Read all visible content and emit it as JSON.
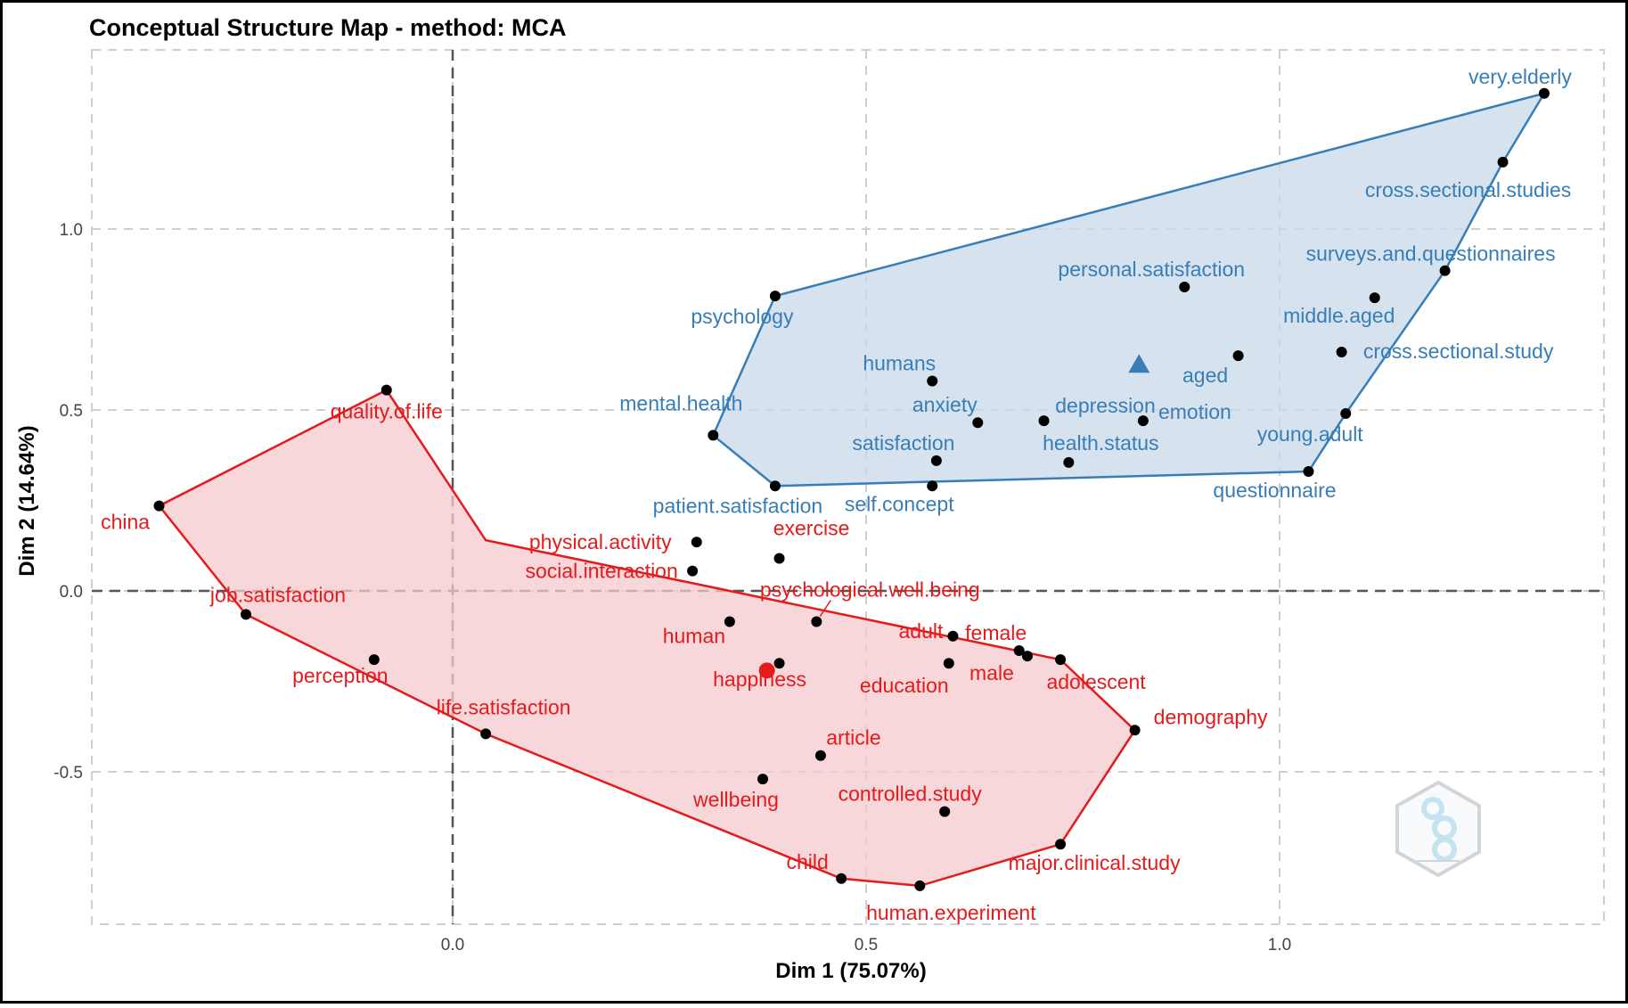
{
  "chart_data": {
    "type": "scatter",
    "title": "Conceptual Structure Map - method: MCA",
    "xlabel": "Dim 1 (75.07%)",
    "ylabel": "Dim 2 (14.64%)",
    "xlim": [
      -0.44,
      1.4
    ],
    "ylim": [
      -0.92,
      1.5
    ],
    "x_ticks": [
      0.0,
      0.5,
      1.0
    ],
    "x_tick_labels": [
      "0.0",
      "0.5",
      "1.0"
    ],
    "y_ticks": [
      -0.5,
      0.0,
      0.5,
      1.0
    ],
    "y_tick_labels": [
      "-0.5",
      "0.0",
      "0.5",
      "1.0"
    ],
    "grid": true,
    "legend": "none",
    "colors": {
      "cluster1": "#e41a1c",
      "cluster1_fill": "#f6c9cf",
      "cluster2": "#377eb8",
      "cluster2_fill": "#c9d8ea",
      "point": "#000000"
    },
    "clusters": [
      {
        "id": "cluster1",
        "centroid": [
          0.38,
          -0.22
        ],
        "centroid_marker": "circle",
        "hull": [
          [
            -0.08,
            0.555
          ],
          [
            -0.355,
            0.235
          ],
          [
            -0.25,
            -0.065
          ],
          [
            0.04,
            -0.395
          ],
          [
            0.47,
            -0.795
          ],
          [
            0.565,
            -0.815
          ],
          [
            0.735,
            -0.7
          ],
          [
            0.825,
            -0.385
          ],
          [
            0.735,
            -0.19
          ],
          [
            0.04,
            0.14
          ],
          [
            -0.08,
            0.555
          ]
        ],
        "points": [
          {
            "label": "quality.of.life",
            "x": -0.08,
            "y": 0.555
          },
          {
            "label": "china",
            "x": -0.355,
            "y": 0.235
          },
          {
            "label": "job.satisfaction",
            "x": -0.25,
            "y": -0.065
          },
          {
            "label": "perception",
            "x": -0.095,
            "y": -0.19
          },
          {
            "label": "life.satisfaction",
            "x": 0.04,
            "y": -0.395
          },
          {
            "label": "physical.activity",
            "x": 0.295,
            "y": 0.135
          },
          {
            "label": "social.interaction",
            "x": 0.29,
            "y": 0.055
          },
          {
            "label": "exercise",
            "x": 0.395,
            "y": 0.09
          },
          {
            "label": "psychological.well.being",
            "x": 0.44,
            "y": -0.085
          },
          {
            "label": "human",
            "x": 0.335,
            "y": -0.085
          },
          {
            "label": "happiness",
            "x": 0.395,
            "y": -0.2
          },
          {
            "label": "adult",
            "x": 0.605,
            "y": -0.125
          },
          {
            "label": "female",
            "x": 0.685,
            "y": -0.165
          },
          {
            "label": "male",
            "x": 0.695,
            "y": -0.18
          },
          {
            "label": "education",
            "x": 0.6,
            "y": -0.2
          },
          {
            "label": "adolescent",
            "x": 0.735,
            "y": -0.19
          },
          {
            "label": "demography",
            "x": 0.825,
            "y": -0.385
          },
          {
            "label": "article",
            "x": 0.445,
            "y": -0.455
          },
          {
            "label": "wellbeing",
            "x": 0.375,
            "y": -0.52
          },
          {
            "label": "controlled.study",
            "x": 0.595,
            "y": -0.61
          },
          {
            "label": "major.clinical.study",
            "x": 0.735,
            "y": -0.7
          },
          {
            "label": "child",
            "x": 0.47,
            "y": -0.795
          },
          {
            "label": "human.experiment",
            "x": 0.565,
            "y": -0.815
          }
        ]
      },
      {
        "id": "cluster2",
        "centroid": [
          0.83,
          0.625
        ],
        "centroid_marker": "triangle",
        "hull": [
          [
            1.32,
            1.375
          ],
          [
            1.27,
            1.185
          ],
          [
            1.2,
            0.885
          ],
          [
            1.08,
            0.49
          ],
          [
            1.035,
            0.33
          ],
          [
            0.39,
            0.29
          ],
          [
            0.315,
            0.43
          ],
          [
            0.39,
            0.815
          ],
          [
            1.32,
            1.375
          ]
        ],
        "points": [
          {
            "label": "very.elderly",
            "x": 1.32,
            "y": 1.375
          },
          {
            "label": "cross.sectional.studies",
            "x": 1.27,
            "y": 1.185
          },
          {
            "label": "surveys.and.questionnaires",
            "x": 1.2,
            "y": 0.885
          },
          {
            "label": "middle.aged",
            "x": 1.115,
            "y": 0.81
          },
          {
            "label": "cross.sectional.study",
            "x": 1.075,
            "y": 0.66
          },
          {
            "label": "young.adult",
            "x": 1.08,
            "y": 0.49
          },
          {
            "label": "questionnaire",
            "x": 1.035,
            "y": 0.33
          },
          {
            "label": "personal.satisfaction",
            "x": 0.885,
            "y": 0.84
          },
          {
            "label": "aged",
            "x": 0.95,
            "y": 0.65
          },
          {
            "label": "emotion",
            "x": 0.835,
            "y": 0.47
          },
          {
            "label": "depression",
            "x": 0.715,
            "y": 0.47
          },
          {
            "label": "health.status",
            "x": 0.745,
            "y": 0.355
          },
          {
            "label": "humans",
            "x": 0.58,
            "y": 0.58
          },
          {
            "label": "anxiety",
            "x": 0.635,
            "y": 0.465
          },
          {
            "label": "satisfaction",
            "x": 0.585,
            "y": 0.36
          },
          {
            "label": "self.concept",
            "x": 0.58,
            "y": 0.29
          },
          {
            "label": "psychology",
            "x": 0.39,
            "y": 0.815
          },
          {
            "label": "mental.health",
            "x": 0.315,
            "y": 0.43
          },
          {
            "label": "patient.satisfaction",
            "x": 0.39,
            "y": 0.29
          }
        ]
      }
    ]
  }
}
